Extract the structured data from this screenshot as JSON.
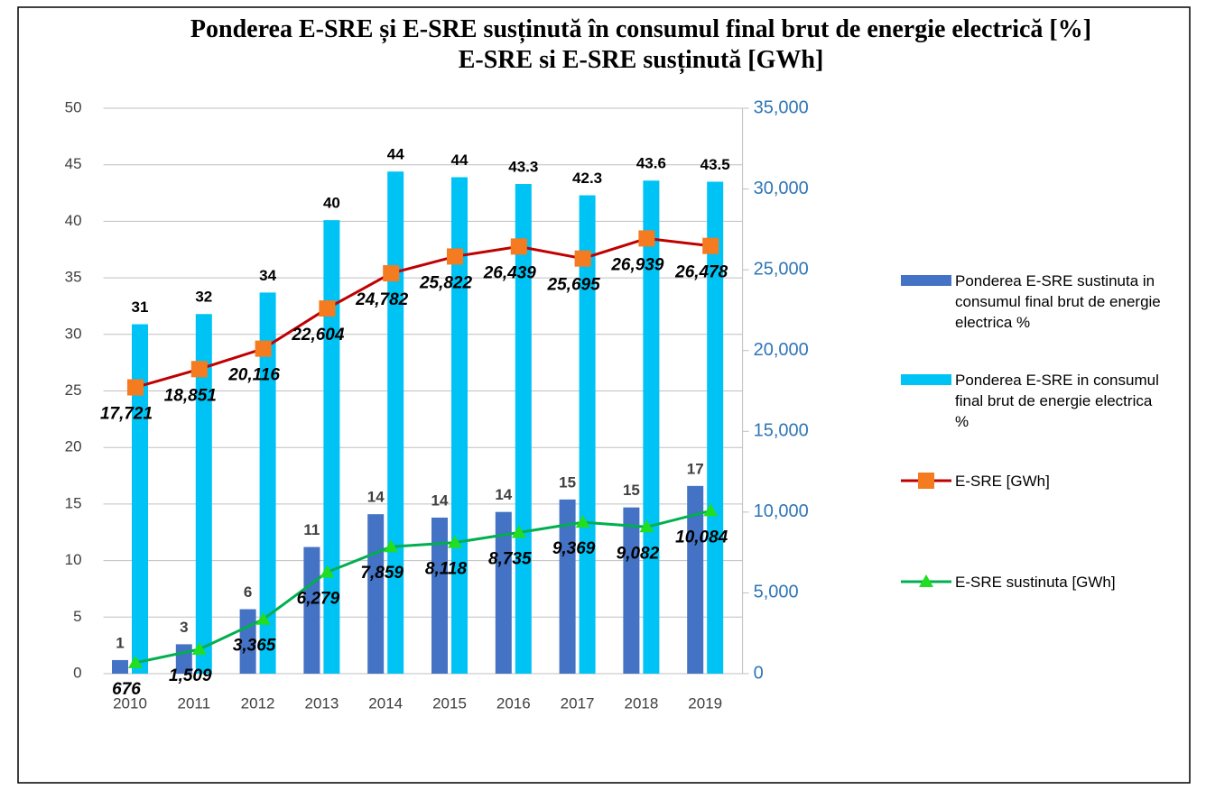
{
  "chart_data": {
    "type": "bar-line",
    "title": "Ponderea E-SRE și E-SRE susținută în consumul final brut de energie electrică [%] E-SRE si E-SRE susținută [GWh]",
    "categories": [
      "2010",
      "2011",
      "2012",
      "2013",
      "2014",
      "2015",
      "2016",
      "2017",
      "2018",
      "2019"
    ],
    "series": [
      {
        "name": "Ponderea E-SRE sustinuta  in consumul final brut de energie electrica %",
        "color": "#4472c4",
        "kind": "bar",
        "values": [
          1.2,
          2.6,
          5.7,
          11.2,
          14.1,
          13.8,
          14.3,
          15.4,
          14.7,
          16.6
        ],
        "value_labels": [
          "1",
          "3",
          "6",
          "11",
          "14",
          "14",
          "14",
          "15",
          "15",
          "17"
        ]
      },
      {
        "name": "Ponderea E-SRE in consumul final brut de energie electrica %",
        "color": "#00c3f5",
        "kind": "bar",
        "values": [
          30.9,
          31.8,
          33.7,
          40.1,
          44.4,
          43.9,
          43.3,
          42.3,
          43.6,
          43.5
        ],
        "value_labels": [
          "31",
          "32",
          "34",
          "40",
          "44",
          "44",
          "43.3",
          "42.3",
          "43.6",
          "43.5"
        ]
      },
      {
        "name": "E-SRE [GWh]",
        "color": "#c00000",
        "marker_color": "#f47b20",
        "marker": "square",
        "kind": "line",
        "axis": "y2",
        "values": [
          17721,
          18851,
          20116,
          22604,
          24782,
          25822,
          26439,
          25695,
          26939,
          26478
        ],
        "value_labels": [
          "17,721",
          "18,851",
          "20,116",
          "22,604",
          "24,782",
          "25,822",
          "26,439",
          "25,695",
          "26,939",
          "26,478"
        ]
      },
      {
        "name": "E-SRE sustinuta [GWh]",
        "color": "#00b050",
        "marker_color": "#22dd22",
        "marker": "triangle",
        "kind": "line",
        "axis": "y2",
        "values": [
          676,
          1509,
          3365,
          6279,
          7859,
          8118,
          8735,
          9369,
          9082,
          10084
        ],
        "value_labels": [
          "676",
          "1,509",
          "3,365",
          "6,279",
          "7,859",
          "8,118",
          "8,735",
          "9,369",
          "9,082",
          "10,084"
        ]
      }
    ],
    "ylim": [
      0,
      50
    ],
    "yticks": [
      0,
      5,
      10,
      15,
      20,
      25,
      30,
      35,
      40,
      45,
      50
    ],
    "y2lim": [
      0,
      35000
    ],
    "y2ticks": [
      0,
      {
        "value": 5000,
        "label": "5,000"
      },
      {
        "value": 10000,
        "label": "10,000"
      },
      {
        "value": 15000,
        "label": "15,000"
      },
      {
        "value": 20000,
        "label": "20,000"
      },
      {
        "value": 25000,
        "label": "25,000"
      },
      {
        "value": 30000,
        "label": "30,000"
      },
      {
        "value": 35000,
        "label": "35,000"
      }
    ],
    "grid": true,
    "legend": "right"
  }
}
